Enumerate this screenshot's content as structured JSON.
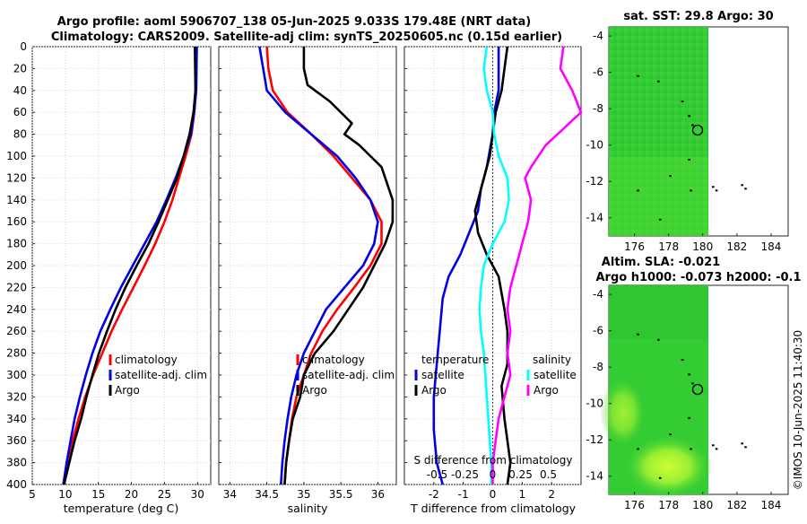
{
  "titles": {
    "line1": "Argo profile: aoml 5906707_138 05-Jun-2025 9.033S 179.48E (NRT data)",
    "line2": "Climatology: CARS2009. Satellite-adj clim: synTS_20250605.nc (0.15d earlier)",
    "sst": "sat. SST: 29.8 Argo: 30",
    "sla1": "Altim. SLA: -0.021",
    "sla2": "Argo h1000: -0.073 h2000: -0.1",
    "side": "©IMOS 10-Jun-2025 11:40:30"
  },
  "chart_data": [
    {
      "type": "line",
      "title": "",
      "xlabel": "temperature (deg C)",
      "ylabel": "",
      "xlim": [
        5,
        32
      ],
      "ylim": [
        400,
        0
      ],
      "xticks": [
        5,
        10,
        15,
        20,
        25,
        30
      ],
      "yticks": [
        0,
        20,
        40,
        60,
        80,
        100,
        120,
        140,
        160,
        180,
        200,
        220,
        240,
        260,
        280,
        300,
        320,
        340,
        360,
        380,
        400
      ],
      "legend": [
        "climatology",
        "satellite-adj. clim",
        "Argo"
      ],
      "series": [
        {
          "name": "climatology",
          "color": "#ff0000",
          "points": [
            [
              29.8,
              0
            ],
            [
              29.7,
              40
            ],
            [
              29.5,
              60
            ],
            [
              29.1,
              80
            ],
            [
              28.2,
              100
            ],
            [
              27.2,
              120
            ],
            [
              26.2,
              140
            ],
            [
              25.0,
              160
            ],
            [
              23.6,
              180
            ],
            [
              22.0,
              200
            ],
            [
              20.3,
              220
            ],
            [
              18.6,
              240
            ],
            [
              17.0,
              260
            ],
            [
              15.6,
              280
            ],
            [
              14.2,
              300
            ],
            [
              13.0,
              320
            ],
            [
              12.0,
              340
            ],
            [
              11.1,
              360
            ],
            [
              10.4,
              380
            ],
            [
              9.7,
              400
            ]
          ]
        },
        {
          "name": "satellite-adj. clim",
          "color": "#0000e6",
          "points": [
            [
              29.9,
              0
            ],
            [
              29.8,
              40
            ],
            [
              29.5,
              60
            ],
            [
              29.0,
              80
            ],
            [
              27.9,
              100
            ],
            [
              26.7,
              120
            ],
            [
              25.3,
              140
            ],
            [
              23.8,
              160
            ],
            [
              22.0,
              180
            ],
            [
              20.2,
              200
            ],
            [
              18.4,
              220
            ],
            [
              16.8,
              240
            ],
            [
              15.3,
              260
            ],
            [
              14.1,
              280
            ],
            [
              13.1,
              300
            ],
            [
              12.2,
              320
            ],
            [
              11.4,
              340
            ],
            [
              10.8,
              360
            ],
            [
              10.2,
              380
            ],
            [
              9.7,
              400
            ]
          ]
        },
        {
          "name": "Argo",
          "color": "#000000",
          "points": [
            [
              29.6,
              0
            ],
            [
              29.7,
              40
            ],
            [
              29.4,
              60
            ],
            [
              28.8,
              80
            ],
            [
              27.9,
              100
            ],
            [
              26.9,
              120
            ],
            [
              25.5,
              140
            ],
            [
              24.1,
              160
            ],
            [
              22.6,
              180
            ],
            [
              20.8,
              200
            ],
            [
              19.1,
              220
            ],
            [
              17.6,
              240
            ],
            [
              16.3,
              260
            ],
            [
              15.1,
              280
            ],
            [
              14.1,
              300
            ],
            [
              13.2,
              320
            ],
            [
              12.4,
              340
            ],
            [
              11.4,
              360
            ],
            [
              10.6,
              380
            ],
            [
              9.8,
              400
            ]
          ]
        }
      ]
    },
    {
      "type": "line",
      "title": "",
      "xlabel": "salinity",
      "ylabel": "",
      "xlim": [
        33.85,
        36.25
      ],
      "ylim": [
        400,
        0
      ],
      "xticks": [
        34,
        34.5,
        35,
        35.5,
        36
      ],
      "legend": [
        "climatology",
        "satellite-adj. clim",
        "Argo"
      ],
      "series": [
        {
          "name": "climatology",
          "color": "#ff0000",
          "points": [
            [
              34.5,
              0
            ],
            [
              34.52,
              20
            ],
            [
              34.58,
              40
            ],
            [
              34.78,
              60
            ],
            [
              35.1,
              80
            ],
            [
              35.4,
              100
            ],
            [
              35.65,
              120
            ],
            [
              35.9,
              140
            ],
            [
              36.05,
              160
            ],
            [
              36.05,
              180
            ],
            [
              35.9,
              200
            ],
            [
              35.68,
              220
            ],
            [
              35.45,
              240
            ],
            [
              35.25,
              260
            ],
            [
              35.1,
              280
            ],
            [
              35.0,
              300
            ],
            [
              34.9,
              320
            ],
            [
              34.84,
              340
            ],
            [
              34.8,
              360
            ],
            [
              34.76,
              380
            ],
            [
              34.74,
              400
            ]
          ]
        },
        {
          "name": "satellite-adj. clim",
          "color": "#0000e6",
          "points": [
            [
              34.4,
              0
            ],
            [
              34.45,
              20
            ],
            [
              34.5,
              40
            ],
            [
              34.75,
              60
            ],
            [
              35.1,
              80
            ],
            [
              35.45,
              100
            ],
            [
              35.7,
              120
            ],
            [
              35.9,
              140
            ],
            [
              36.0,
              160
            ],
            [
              35.95,
              180
            ],
            [
              35.8,
              200
            ],
            [
              35.55,
              220
            ],
            [
              35.3,
              240
            ],
            [
              35.15,
              260
            ],
            [
              35.0,
              280
            ],
            [
              34.9,
              300
            ],
            [
              34.83,
              320
            ],
            [
              34.78,
              340
            ],
            [
              34.74,
              360
            ],
            [
              34.71,
              380
            ],
            [
              34.69,
              400
            ]
          ]
        },
        {
          "name": "Argo",
          "color": "#000000",
          "points": [
            [
              35.0,
              0
            ],
            [
              35.0,
              20
            ],
            [
              35.05,
              35
            ],
            [
              35.35,
              50
            ],
            [
              35.5,
              60
            ],
            [
              35.65,
              70
            ],
            [
              35.55,
              80
            ],
            [
              35.75,
              90
            ],
            [
              35.9,
              100
            ],
            [
              36.05,
              110
            ],
            [
              36.2,
              140
            ],
            [
              36.2,
              160
            ],
            [
              36.1,
              180
            ],
            [
              35.95,
              200
            ],
            [
              35.8,
              220
            ],
            [
              35.6,
              240
            ],
            [
              35.4,
              260
            ],
            [
              35.15,
              280
            ],
            [
              35.0,
              300
            ],
            [
              34.95,
              320
            ],
            [
              34.85,
              340
            ],
            [
              34.8,
              360
            ],
            [
              34.76,
              380
            ],
            [
              34.74,
              400
            ]
          ]
        }
      ]
    },
    {
      "type": "line",
      "title": "",
      "xlabel": "T difference from climatology",
      "x2label": "S difference from climatology",
      "ylabel": "",
      "xlim": [
        -3,
        3
      ],
      "ylim": [
        400,
        0
      ],
      "xticks": [
        -2,
        -1,
        0,
        1,
        2
      ],
      "x2ticks": [
        -0.5,
        -0.25,
        0,
        0.25,
        0.5
      ],
      "x2tick_labels": [
        "-0.5",
        "-0.25",
        "0",
        "0.25",
        "0.5"
      ],
      "legend_title_t": "temperature",
      "legend_title_s": "salinity",
      "legend_t": [
        "satellite",
        "Argo"
      ],
      "legend_s": [
        "satellite",
        "Argo"
      ],
      "series": [
        {
          "name": "temperature satellite",
          "color": "#0000e6",
          "points": [
            [
              0.2,
              0
            ],
            [
              0.2,
              40
            ],
            [
              0.05,
              60
            ],
            [
              0,
              80
            ],
            [
              -0.2,
              110
            ],
            [
              -0.4,
              130
            ],
            [
              -0.5,
              150
            ],
            [
              -0.8,
              170
            ],
            [
              -1.1,
              190
            ],
            [
              -1.5,
              210
            ],
            [
              -1.7,
              230
            ],
            [
              -1.8,
              260
            ],
            [
              -1.9,
              290
            ],
            [
              -2.0,
              320
            ],
            [
              -2.0,
              350
            ],
            [
              -1.9,
              380
            ],
            [
              -1.7,
              400
            ]
          ]
        },
        {
          "name": "temperature Argo",
          "color": "#000000",
          "points": [
            [
              0.5,
              0
            ],
            [
              0.4,
              20
            ],
            [
              0.3,
              40
            ],
            [
              0.1,
              60
            ],
            [
              0.0,
              80
            ],
            [
              -0.1,
              100
            ],
            [
              -0.4,
              130
            ],
            [
              -0.6,
              150
            ],
            [
              -0.5,
              170
            ],
            [
              -0.2,
              190
            ],
            [
              0.2,
              210
            ],
            [
              0.4,
              240
            ],
            [
              0.5,
              260
            ],
            [
              0.5,
              290
            ],
            [
              0.3,
              310
            ],
            [
              0.4,
              340
            ],
            [
              0.5,
              360
            ],
            [
              0.6,
              380
            ],
            [
              0.5,
              400
            ]
          ]
        },
        {
          "name": "salinity satellite",
          "color": "#00ffff",
          "points": [
            [
              -0.2,
              0
            ],
            [
              -0.3,
              20
            ],
            [
              -0.2,
              40
            ],
            [
              0,
              60
            ],
            [
              0.05,
              80
            ],
            [
              0.2,
              100
            ],
            [
              0.5,
              120
            ],
            [
              0.55,
              140
            ],
            [
              0.4,
              160
            ],
            [
              0.0,
              180
            ],
            [
              -0.3,
              200
            ],
            [
              -0.4,
              220
            ],
            [
              -0.45,
              240
            ],
            [
              -0.4,
              260
            ],
            [
              -0.3,
              280
            ],
            [
              -0.25,
              300
            ],
            [
              -0.2,
              320
            ],
            [
              -0.15,
              340
            ],
            [
              -0.1,
              360
            ],
            [
              -0.05,
              380
            ],
            [
              -0.05,
              400
            ]
          ]
        },
        {
          "name": "salinity Argo",
          "color": "#ff00ff",
          "points": [
            [
              2.4,
              0
            ],
            [
              2.3,
              20
            ],
            [
              2.7,
              40
            ],
            [
              3.0,
              60
            ],
            [
              1.8,
              90
            ],
            [
              1.3,
              110
            ],
            [
              1.1,
              120
            ],
            [
              1.3,
              140
            ],
            [
              1.2,
              160
            ],
            [
              1.0,
              180
            ],
            [
              0.8,
              200
            ],
            [
              0.6,
              220
            ],
            [
              0.5,
              240
            ],
            [
              0.6,
              260
            ],
            [
              0.5,
              280
            ],
            [
              0.6,
              300
            ],
            [
              0.4,
              320
            ],
            [
              0.2,
              340
            ],
            [
              0.1,
              360
            ],
            [
              0.0,
              380
            ],
            [
              0.0,
              400
            ]
          ]
        }
      ]
    },
    {
      "type": "heatmap",
      "title": "sat. SST: 29.8 Argo: 30",
      "xlim": [
        174.5,
        185
      ],
      "ylim": [
        -15,
        -3.5
      ],
      "xticks": [
        176,
        178,
        180,
        182,
        184
      ],
      "yticks": [
        -4,
        -6,
        -8,
        -10,
        -12,
        -14
      ],
      "argo_position": [
        179.48,
        -9.033
      ]
    },
    {
      "type": "heatmap",
      "title": "Altim. SLA: -0.021",
      "xlim": [
        174.5,
        185
      ],
      "ylim": [
        -15,
        -3.5
      ],
      "xticks": [
        176,
        178,
        180,
        182,
        184
      ],
      "yticks": [
        -4,
        -6,
        -8,
        -10,
        -12,
        -14
      ],
      "argo_position": [
        179.48,
        -9.033
      ]
    }
  ]
}
